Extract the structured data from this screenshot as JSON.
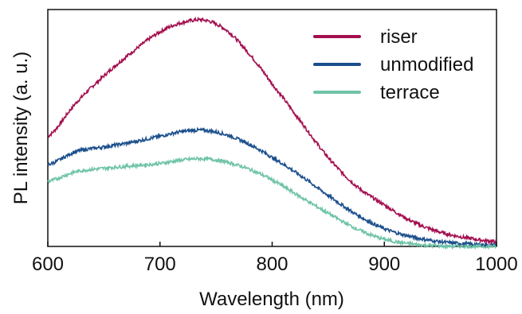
{
  "chart_data": {
    "type": "line",
    "xlabel": "Wavelength (nm)",
    "ylabel": "PL intensity (a. u.)",
    "xlim": [
      600,
      1000
    ],
    "ylim": [
      0,
      1.0
    ],
    "xticks": [
      600,
      700,
      800,
      900,
      1000
    ],
    "yticks": [],
    "grid": false,
    "legend_position": "top-right",
    "x": [
      600,
      625,
      650,
      675,
      700,
      720,
      740,
      760,
      780,
      800,
      825,
      850,
      875,
      900,
      925,
      950,
      975,
      1000
    ],
    "series": [
      {
        "name": "riser",
        "color": "#a30f4f",
        "values": [
          0.465,
          0.605,
          0.72,
          0.82,
          0.905,
          0.945,
          0.955,
          0.91,
          0.81,
          0.685,
          0.53,
          0.375,
          0.255,
          0.175,
          0.105,
          0.06,
          0.035,
          0.02
        ]
      },
      {
        "name": "unmodified",
        "color": "#1b4f8c",
        "values": [
          0.345,
          0.4,
          0.42,
          0.44,
          0.465,
          0.485,
          0.49,
          0.47,
          0.43,
          0.375,
          0.3,
          0.215,
          0.135,
          0.075,
          0.04,
          0.02,
          0.01,
          0.005
        ]
      },
      {
        "name": "terrace",
        "color": "#6fc3a8",
        "values": [
          0.275,
          0.315,
          0.33,
          0.34,
          0.35,
          0.365,
          0.37,
          0.355,
          0.325,
          0.28,
          0.21,
          0.14,
          0.075,
          0.03,
          0.01,
          0.002,
          0.0,
          0.0
        ]
      }
    ]
  }
}
